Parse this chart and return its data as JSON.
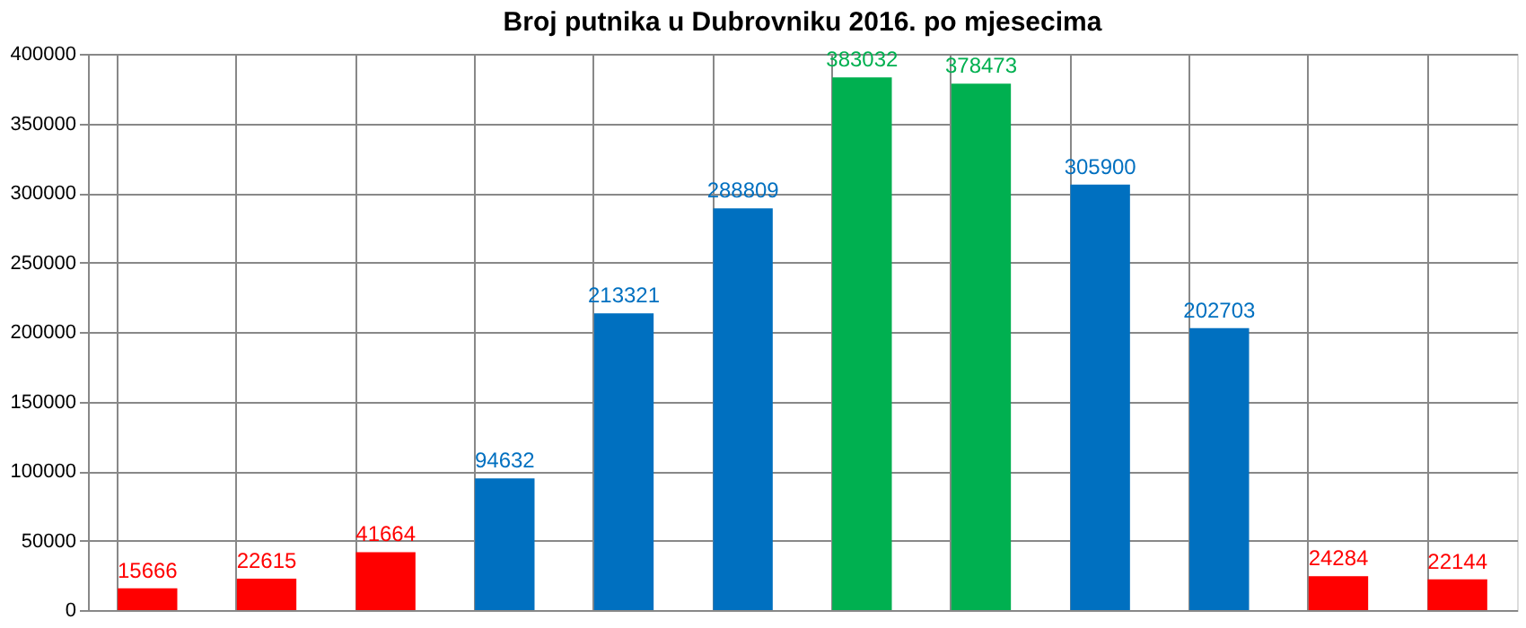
{
  "chart_data": {
    "type": "bar",
    "title": "Broj putnika u Dubrovniku 2016. po mjesecima",
    "categories": [
      null,
      null,
      null,
      null,
      null,
      null,
      null,
      null,
      null,
      null,
      null,
      null
    ],
    "values": [
      15666,
      22615,
      41664,
      94632,
      213321,
      288809,
      383032,
      378473,
      305900,
      202703,
      24284,
      22144
    ],
    "colors": [
      "#ff0000",
      "#ff0000",
      "#ff0000",
      "#0070c0",
      "#0070c0",
      "#0070c0",
      "#00b050",
      "#00b050",
      "#0070c0",
      "#0070c0",
      "#ff0000",
      "#ff0000"
    ],
    "ylim": [
      0,
      400000
    ],
    "yticks": [
      0,
      50000,
      100000,
      150000,
      200000,
      250000,
      300000,
      350000,
      400000
    ],
    "grid": true,
    "data_labels": true
  }
}
